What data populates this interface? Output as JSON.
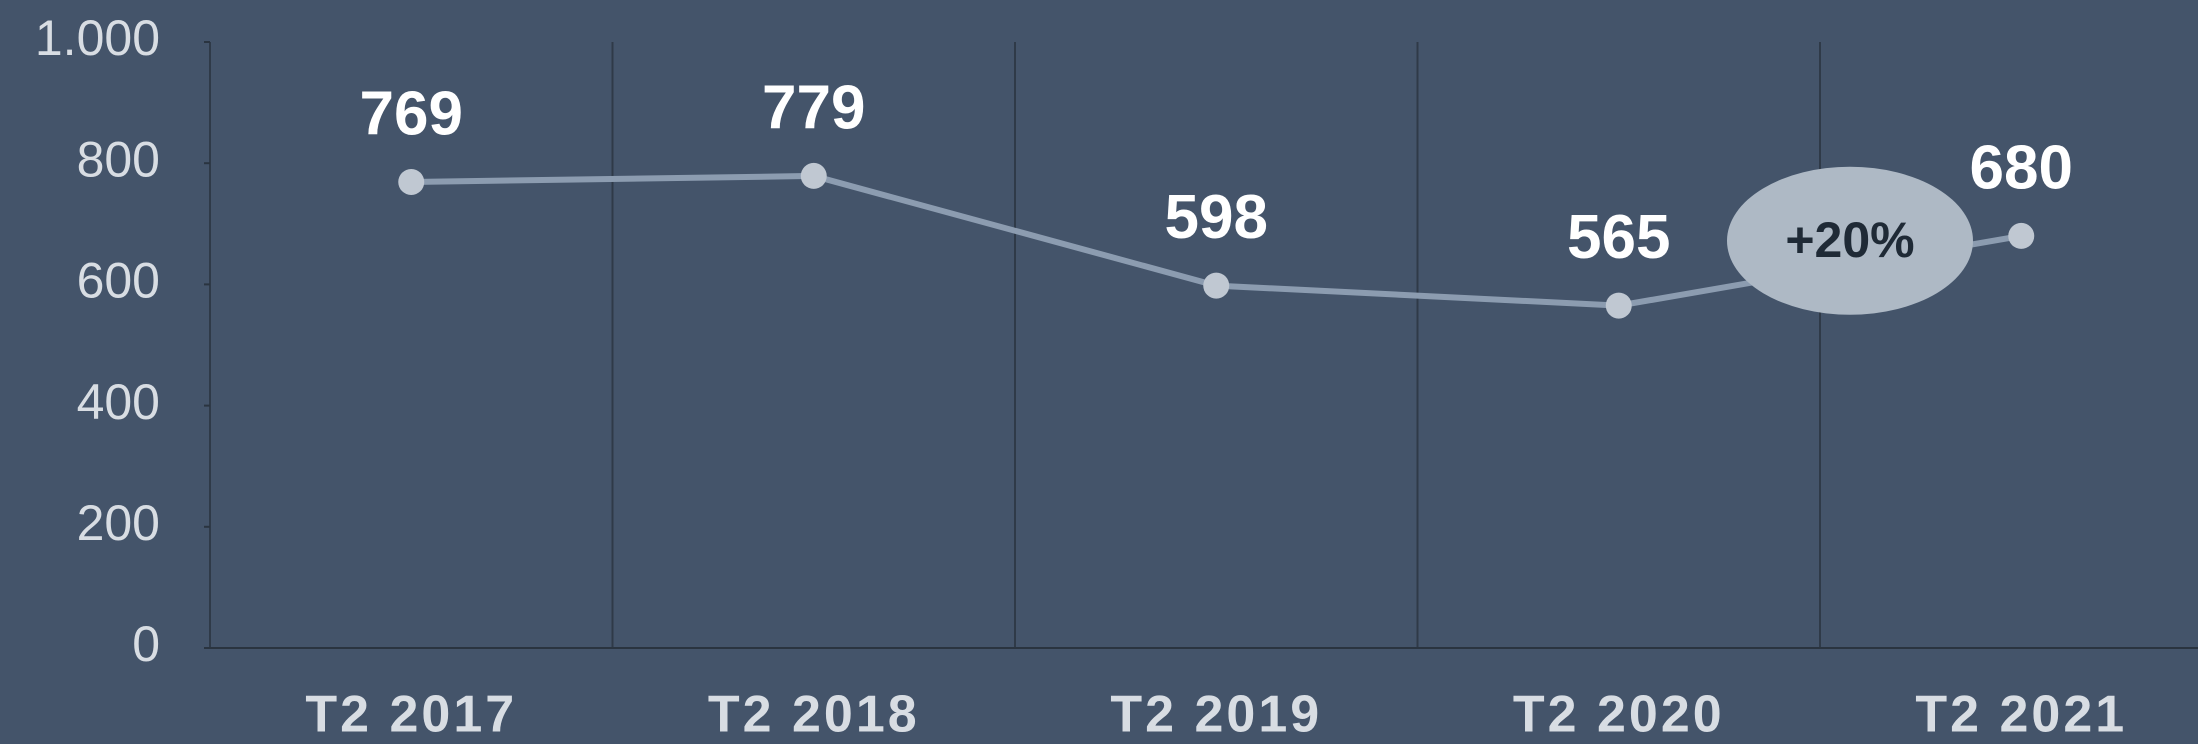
{
  "chart_data": {
    "type": "line",
    "categories": [
      "T2 2017",
      "T2 2018",
      "T2 2019",
      "T2 2020",
      "T2 2021"
    ],
    "values": [
      769,
      779,
      598,
      565,
      680
    ],
    "color": "#8c9cb0",
    "marker_color": "#c0c8d2",
    "ylim": [
      0,
      1000
    ],
    "yticks": [
      0,
      200,
      400,
      600,
      800,
      {
        "value": 1000,
        "label": "1.000"
      }
    ],
    "grid": false,
    "annotations": [
      {
        "text": "+20%"
      }
    ]
  }
}
